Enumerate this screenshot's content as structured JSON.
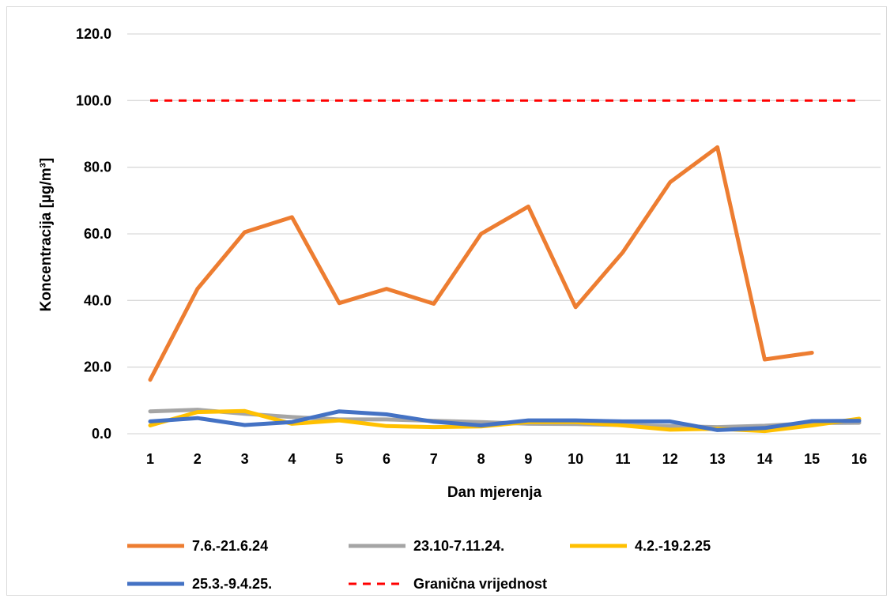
{
  "chart_data": {
    "type": "line",
    "title": "",
    "xlabel": "Dan mjerenja",
    "ylabel": "Koncentracija [µg/m³]",
    "categories": [
      "1",
      "2",
      "3",
      "4",
      "5",
      "6",
      "7",
      "8",
      "9",
      "10",
      "11",
      "12",
      "13",
      "14",
      "15",
      "16"
    ],
    "ylim": [
      0,
      120
    ],
    "yticks": [
      "0.0",
      "20.0",
      "40.0",
      "60.0",
      "80.0",
      "100.0",
      "120.0"
    ],
    "grid": true,
    "legend_position": "bottom",
    "series": [
      {
        "name": "7.6.-21.6.24",
        "color": "#ED7D31",
        "style": "solid",
        "values": [
          16.2,
          43.5,
          60.5,
          65.0,
          39.2,
          43.5,
          39.0,
          60.0,
          68.2,
          38.0,
          54.5,
          75.5,
          86.0,
          22.3,
          24.3,
          null
        ]
      },
      {
        "name": "23.10-7.11.24.",
        "color": "#A5A5A5",
        "style": "solid",
        "values": [
          6.7,
          7.2,
          6.0,
          5.0,
          4.3,
          4.3,
          3.9,
          3.5,
          3.0,
          2.9,
          2.6,
          2.3,
          2.0,
          2.4,
          3.2,
          3.3
        ]
      },
      {
        "name": "4.2.-19.2.25",
        "color": "#FFC000",
        "style": "solid",
        "values": [
          2.5,
          6.5,
          6.8,
          3.0,
          4.0,
          2.3,
          2.0,
          2.2,
          3.5,
          3.5,
          2.5,
          1.2,
          1.5,
          0.8,
          2.5,
          4.5
        ]
      },
      {
        "name": "25.3.-9.4.25.",
        "color": "#4472C4",
        "style": "solid",
        "values": [
          3.7,
          4.7,
          2.6,
          3.5,
          6.7,
          5.8,
          3.6,
          2.5,
          4.0,
          4.0,
          3.7,
          3.7,
          1.1,
          1.7,
          3.8,
          3.9
        ]
      },
      {
        "name": "Granična vrijednost",
        "color": "#FF0000",
        "style": "dashed",
        "values": [
          100,
          100,
          100,
          100,
          100,
          100,
          100,
          100,
          100,
          100,
          100,
          100,
          100,
          100,
          100,
          100
        ]
      }
    ]
  }
}
